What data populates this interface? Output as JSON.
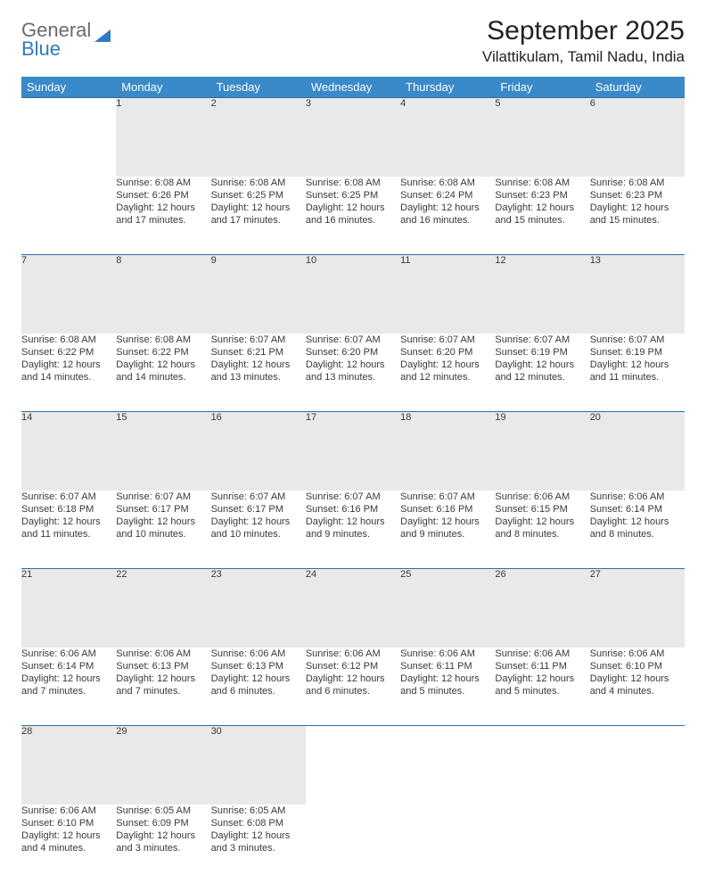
{
  "logo": {
    "line1": "General",
    "line2": "Blue"
  },
  "title": "September 2025",
  "location": "Vilattikulam, Tamil Nadu, India",
  "colors": {
    "header_bg": "#3a89c9",
    "header_text": "#ffffff",
    "daynum_bg": "#e9e9e9",
    "row_border": "#2d6fa4",
    "logo_gray": "#6b6b6b",
    "logo_blue": "#2f7bbf",
    "text": "#3a3a3a",
    "background": "#ffffff"
  },
  "typography": {
    "title_fontsize": 30,
    "location_fontsize": 17,
    "day_header_fontsize": 13,
    "cell_fontsize": 11
  },
  "day_headers": [
    "Sunday",
    "Monday",
    "Tuesday",
    "Wednesday",
    "Thursday",
    "Friday",
    "Saturday"
  ],
  "weeks": [
    [
      null,
      {
        "num": "1",
        "sunrise": "Sunrise: 6:08 AM",
        "sunset": "Sunset: 6:26 PM",
        "daylight": "Daylight: 12 hours and 17 minutes."
      },
      {
        "num": "2",
        "sunrise": "Sunrise: 6:08 AM",
        "sunset": "Sunset: 6:25 PM",
        "daylight": "Daylight: 12 hours and 17 minutes."
      },
      {
        "num": "3",
        "sunrise": "Sunrise: 6:08 AM",
        "sunset": "Sunset: 6:25 PM",
        "daylight": "Daylight: 12 hours and 16 minutes."
      },
      {
        "num": "4",
        "sunrise": "Sunrise: 6:08 AM",
        "sunset": "Sunset: 6:24 PM",
        "daylight": "Daylight: 12 hours and 16 minutes."
      },
      {
        "num": "5",
        "sunrise": "Sunrise: 6:08 AM",
        "sunset": "Sunset: 6:23 PM",
        "daylight": "Daylight: 12 hours and 15 minutes."
      },
      {
        "num": "6",
        "sunrise": "Sunrise: 6:08 AM",
        "sunset": "Sunset: 6:23 PM",
        "daylight": "Daylight: 12 hours and 15 minutes."
      }
    ],
    [
      {
        "num": "7",
        "sunrise": "Sunrise: 6:08 AM",
        "sunset": "Sunset: 6:22 PM",
        "daylight": "Daylight: 12 hours and 14 minutes."
      },
      {
        "num": "8",
        "sunrise": "Sunrise: 6:08 AM",
        "sunset": "Sunset: 6:22 PM",
        "daylight": "Daylight: 12 hours and 14 minutes."
      },
      {
        "num": "9",
        "sunrise": "Sunrise: 6:07 AM",
        "sunset": "Sunset: 6:21 PM",
        "daylight": "Daylight: 12 hours and 13 minutes."
      },
      {
        "num": "10",
        "sunrise": "Sunrise: 6:07 AM",
        "sunset": "Sunset: 6:20 PM",
        "daylight": "Daylight: 12 hours and 13 minutes."
      },
      {
        "num": "11",
        "sunrise": "Sunrise: 6:07 AM",
        "sunset": "Sunset: 6:20 PM",
        "daylight": "Daylight: 12 hours and 12 minutes."
      },
      {
        "num": "12",
        "sunrise": "Sunrise: 6:07 AM",
        "sunset": "Sunset: 6:19 PM",
        "daylight": "Daylight: 12 hours and 12 minutes."
      },
      {
        "num": "13",
        "sunrise": "Sunrise: 6:07 AM",
        "sunset": "Sunset: 6:19 PM",
        "daylight": "Daylight: 12 hours and 11 minutes."
      }
    ],
    [
      {
        "num": "14",
        "sunrise": "Sunrise: 6:07 AM",
        "sunset": "Sunset: 6:18 PM",
        "daylight": "Daylight: 12 hours and 11 minutes."
      },
      {
        "num": "15",
        "sunrise": "Sunrise: 6:07 AM",
        "sunset": "Sunset: 6:17 PM",
        "daylight": "Daylight: 12 hours and 10 minutes."
      },
      {
        "num": "16",
        "sunrise": "Sunrise: 6:07 AM",
        "sunset": "Sunset: 6:17 PM",
        "daylight": "Daylight: 12 hours and 10 minutes."
      },
      {
        "num": "17",
        "sunrise": "Sunrise: 6:07 AM",
        "sunset": "Sunset: 6:16 PM",
        "daylight": "Daylight: 12 hours and 9 minutes."
      },
      {
        "num": "18",
        "sunrise": "Sunrise: 6:07 AM",
        "sunset": "Sunset: 6:16 PM",
        "daylight": "Daylight: 12 hours and 9 minutes."
      },
      {
        "num": "19",
        "sunrise": "Sunrise: 6:06 AM",
        "sunset": "Sunset: 6:15 PM",
        "daylight": "Daylight: 12 hours and 8 minutes."
      },
      {
        "num": "20",
        "sunrise": "Sunrise: 6:06 AM",
        "sunset": "Sunset: 6:14 PM",
        "daylight": "Daylight: 12 hours and 8 minutes."
      }
    ],
    [
      {
        "num": "21",
        "sunrise": "Sunrise: 6:06 AM",
        "sunset": "Sunset: 6:14 PM",
        "daylight": "Daylight: 12 hours and 7 minutes."
      },
      {
        "num": "22",
        "sunrise": "Sunrise: 6:06 AM",
        "sunset": "Sunset: 6:13 PM",
        "daylight": "Daylight: 12 hours and 7 minutes."
      },
      {
        "num": "23",
        "sunrise": "Sunrise: 6:06 AM",
        "sunset": "Sunset: 6:13 PM",
        "daylight": "Daylight: 12 hours and 6 minutes."
      },
      {
        "num": "24",
        "sunrise": "Sunrise: 6:06 AM",
        "sunset": "Sunset: 6:12 PM",
        "daylight": "Daylight: 12 hours and 6 minutes."
      },
      {
        "num": "25",
        "sunrise": "Sunrise: 6:06 AM",
        "sunset": "Sunset: 6:11 PM",
        "daylight": "Daylight: 12 hours and 5 minutes."
      },
      {
        "num": "26",
        "sunrise": "Sunrise: 6:06 AM",
        "sunset": "Sunset: 6:11 PM",
        "daylight": "Daylight: 12 hours and 5 minutes."
      },
      {
        "num": "27",
        "sunrise": "Sunrise: 6:06 AM",
        "sunset": "Sunset: 6:10 PM",
        "daylight": "Daylight: 12 hours and 4 minutes."
      }
    ],
    [
      {
        "num": "28",
        "sunrise": "Sunrise: 6:06 AM",
        "sunset": "Sunset: 6:10 PM",
        "daylight": "Daylight: 12 hours and 4 minutes."
      },
      {
        "num": "29",
        "sunrise": "Sunrise: 6:05 AM",
        "sunset": "Sunset: 6:09 PM",
        "daylight": "Daylight: 12 hours and 3 minutes."
      },
      {
        "num": "30",
        "sunrise": "Sunrise: 6:05 AM",
        "sunset": "Sunset: 6:08 PM",
        "daylight": "Daylight: 12 hours and 3 minutes."
      },
      null,
      null,
      null,
      null
    ]
  ]
}
